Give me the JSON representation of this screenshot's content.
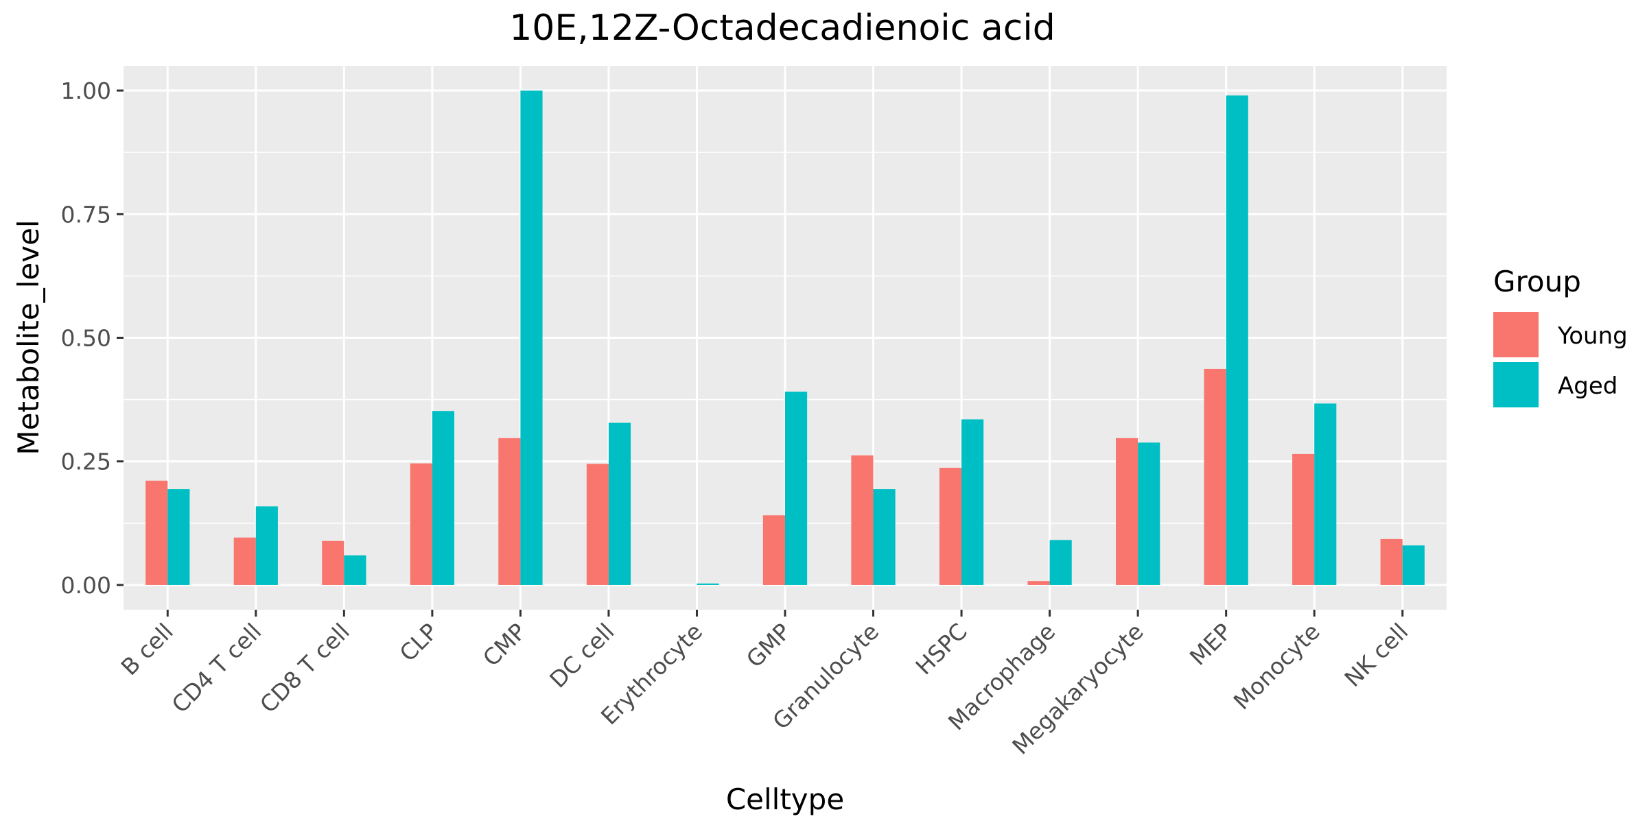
{
  "chart_data": {
    "type": "bar",
    "title": "10E,12Z-Octadecadienoic acid",
    "xlabel": "Celltype",
    "ylabel": "Metabolite_level",
    "ylim": [
      -0.05,
      1.05
    ],
    "yticks": [
      0.0,
      0.25,
      0.5,
      0.75,
      1.0
    ],
    "ytick_labels": [
      "0.00",
      "0.25",
      "0.50",
      "0.75",
      "1.00"
    ],
    "grid": true,
    "legend_position": "right",
    "legend_title": "Group",
    "categories": [
      "B cell",
      "CD4 T cell",
      "CD8 T cell",
      "CLP",
      "CMP",
      "DC cell",
      "Erythrocyte",
      "GMP",
      "Granulocyte",
      "HSPC",
      "Macrophage",
      "Megakaryocyte",
      "MEP",
      "Monocyte",
      "NK cell"
    ],
    "series": [
      {
        "name": "Young",
        "color": "#F8766D",
        "values": [
          0.211,
          0.096,
          0.089,
          0.246,
          0.297,
          0.245,
          0.0,
          0.141,
          0.262,
          0.237,
          0.008,
          0.297,
          0.437,
          0.265,
          0.093
        ]
      },
      {
        "name": "Aged",
        "color": "#00BFC4",
        "values": [
          0.194,
          0.159,
          0.06,
          0.352,
          1.0,
          0.328,
          0.003,
          0.391,
          0.194,
          0.335,
          0.091,
          0.288,
          0.99,
          0.367,
          0.08
        ]
      }
    ],
    "panel_background": "#EBEBEB",
    "grid_color": "#FFFFFF"
  }
}
